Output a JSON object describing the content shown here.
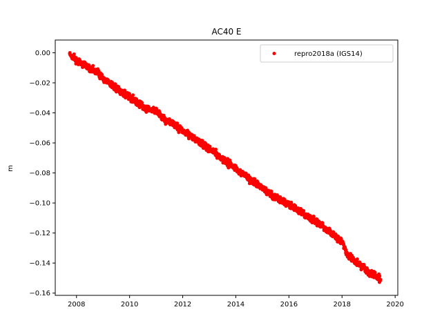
{
  "chart_data": {
    "type": "scatter",
    "title": "AC40 E",
    "xlabel": "",
    "ylabel": "m",
    "xlim": [
      2007.2,
      2020.1
    ],
    "ylim": [
      -0.1615,
      0.0085
    ],
    "xticks": [
      2008,
      2010,
      2012,
      2014,
      2016,
      2018,
      2020
    ],
    "xtick_labels": [
      "2008",
      "2010",
      "2012",
      "2014",
      "2016",
      "2018",
      "2020"
    ],
    "yticks": [
      0.0,
      -0.02,
      -0.04,
      -0.06,
      -0.08,
      -0.1,
      -0.12,
      -0.14,
      -0.16
    ],
    "ytick_labels": [
      "0.00",
      "−0.02",
      "−0.04",
      "−0.06",
      "−0.08",
      "−0.10",
      "−0.12",
      "−0.14",
      "−0.16"
    ],
    "grid": false,
    "legend_position": "top-right",
    "series": [
      {
        "name": "repro2018a (IGS14)",
        "color": "#ff0000",
        "marker": "circle",
        "x": [
          2007.75,
          2007.8,
          2007.9,
          2008.0,
          2008.2,
          2008.5,
          2008.8,
          2009.0,
          2009.3,
          2009.6,
          2010.0,
          2010.3,
          2010.6,
          2011.0,
          2011.3,
          2011.6,
          2012.0,
          2012.3,
          2012.6,
          2013.0,
          2013.3,
          2013.6,
          2014.0,
          2014.3,
          2014.6,
          2015.0,
          2015.3,
          2015.6,
          2016.0,
          2016.3,
          2016.6,
          2017.0,
          2017.3,
          2017.6,
          2018.0,
          2018.2,
          2018.5,
          2018.8,
          2019.0,
          2019.2,
          2019.45
        ],
        "y": [
          0.0,
          -0.002,
          -0.003,
          -0.005,
          -0.007,
          -0.01,
          -0.013,
          -0.017,
          -0.021,
          -0.025,
          -0.029,
          -0.033,
          -0.037,
          -0.039,
          -0.044,
          -0.047,
          -0.052,
          -0.055,
          -0.059,
          -0.064,
          -0.068,
          -0.072,
          -0.077,
          -0.081,
          -0.085,
          -0.09,
          -0.094,
          -0.097,
          -0.101,
          -0.104,
          -0.108,
          -0.112,
          -0.116,
          -0.12,
          -0.126,
          -0.134,
          -0.139,
          -0.143,
          -0.146,
          -0.148,
          -0.151
        ]
      }
    ]
  }
}
